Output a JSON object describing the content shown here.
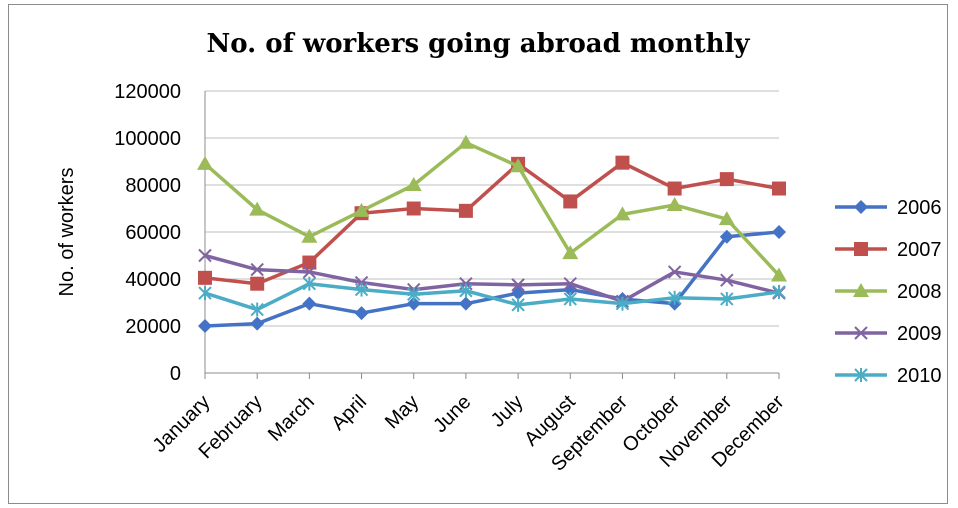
{
  "chart_data": {
    "type": "line",
    "title": "No. of workers going abroad monthly",
    "xlabel": "",
    "ylabel": "No. of workers",
    "ylim": [
      0,
      120000
    ],
    "yticks": [
      0,
      20000,
      40000,
      60000,
      80000,
      100000,
      120000
    ],
    "grid": "horizontal",
    "legend_position": "right",
    "categories": [
      "January",
      "February",
      "March",
      "April",
      "May",
      "June",
      "July",
      "August",
      "September",
      "October",
      "November",
      "December"
    ],
    "series": [
      {
        "name": "2006",
        "color": "#4472C4",
        "marker": "diamond",
        "values": [
          20000,
          21000,
          29500,
          25500,
          29500,
          29500,
          34000,
          35500,
          31500,
          29500,
          58000,
          60000
        ]
      },
      {
        "name": "2007",
        "color": "#C0504D",
        "marker": "square",
        "values": [
          40500,
          38000,
          47000,
          68000,
          70000,
          69000,
          89000,
          73000,
          89500,
          78500,
          82500,
          78500
        ]
      },
      {
        "name": "2008",
        "color": "#9BBB59",
        "marker": "triangle",
        "values": [
          89000,
          69500,
          58000,
          69000,
          80000,
          98000,
          88000,
          51000,
          67500,
          71500,
          65500,
          41500
        ]
      },
      {
        "name": "2009",
        "color": "#8064A2",
        "marker": "x",
        "values": [
          50000,
          44000,
          43000,
          38500,
          35500,
          38000,
          37500,
          38000,
          30500,
          43000,
          39500,
          34000
        ]
      },
      {
        "name": "2010",
        "color": "#4BACC6",
        "marker": "star",
        "values": [
          34000,
          27000,
          38000,
          35500,
          33500,
          35000,
          29000,
          31500,
          29500,
          32000,
          31500,
          34500
        ]
      }
    ]
  }
}
